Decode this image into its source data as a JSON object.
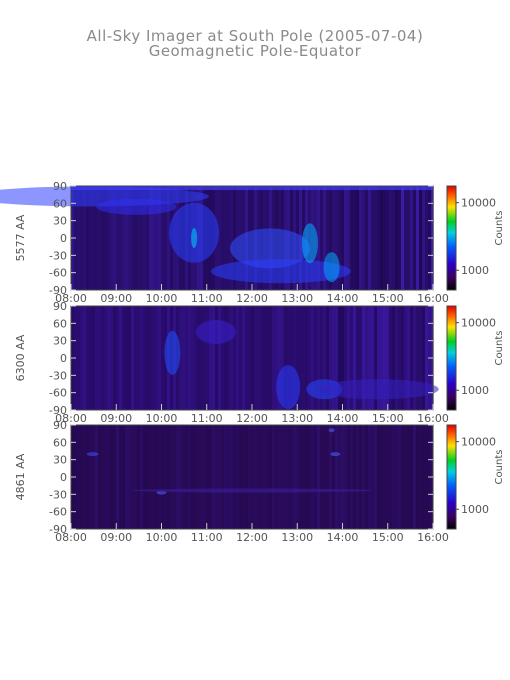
{
  "title": "All-Sky Imager at South Pole (2005-07-04)",
  "subtitle": "Geomagnetic Pole-Equator",
  "chart_data": [
    {
      "type": "heatmap",
      "ylabel": "5577 AA",
      "x_ticks": [
        "08:00",
        "09:00",
        "10:00",
        "11:00",
        "12:00",
        "13:00",
        "14:00",
        "15:00",
        "16:00"
      ],
      "y_ticks": [
        90,
        60,
        30,
        0,
        -30,
        -60,
        -90
      ],
      "xlim": [
        "08:00",
        "16:00"
      ],
      "ylim": [
        -90,
        90
      ],
      "colorbar": {
        "label": "Counts",
        "ticks": [
          "10000",
          "1000"
        ],
        "scale": "log"
      }
    },
    {
      "type": "heatmap",
      "ylabel": "6300 AA",
      "x_ticks": [
        "08:00",
        "09:00",
        "10:00",
        "11:00",
        "12:00",
        "13:00",
        "14:00",
        "15:00",
        "16:00"
      ],
      "y_ticks": [
        90,
        60,
        30,
        0,
        -30,
        -60,
        -90
      ],
      "xlim": [
        "08:00",
        "16:00"
      ],
      "ylim": [
        -90,
        90
      ],
      "colorbar": {
        "label": "Counts",
        "ticks": [
          "10000",
          "1000"
        ],
        "scale": "log"
      }
    },
    {
      "type": "heatmap",
      "ylabel": "4861 AA",
      "x_ticks": [
        "08:00",
        "09:00",
        "10:00",
        "11:00",
        "12:00",
        "13:00",
        "14:00",
        "15:00",
        "16:00"
      ],
      "y_ticks": [
        90,
        60,
        30,
        0,
        -30,
        -60,
        -90
      ],
      "xlim": [
        "08:00",
        "16:00"
      ],
      "ylim": [
        -90,
        90
      ],
      "colorbar": {
        "label": "Counts",
        "ticks": [
          "10000",
          "1000"
        ],
        "scale": "log"
      }
    }
  ]
}
